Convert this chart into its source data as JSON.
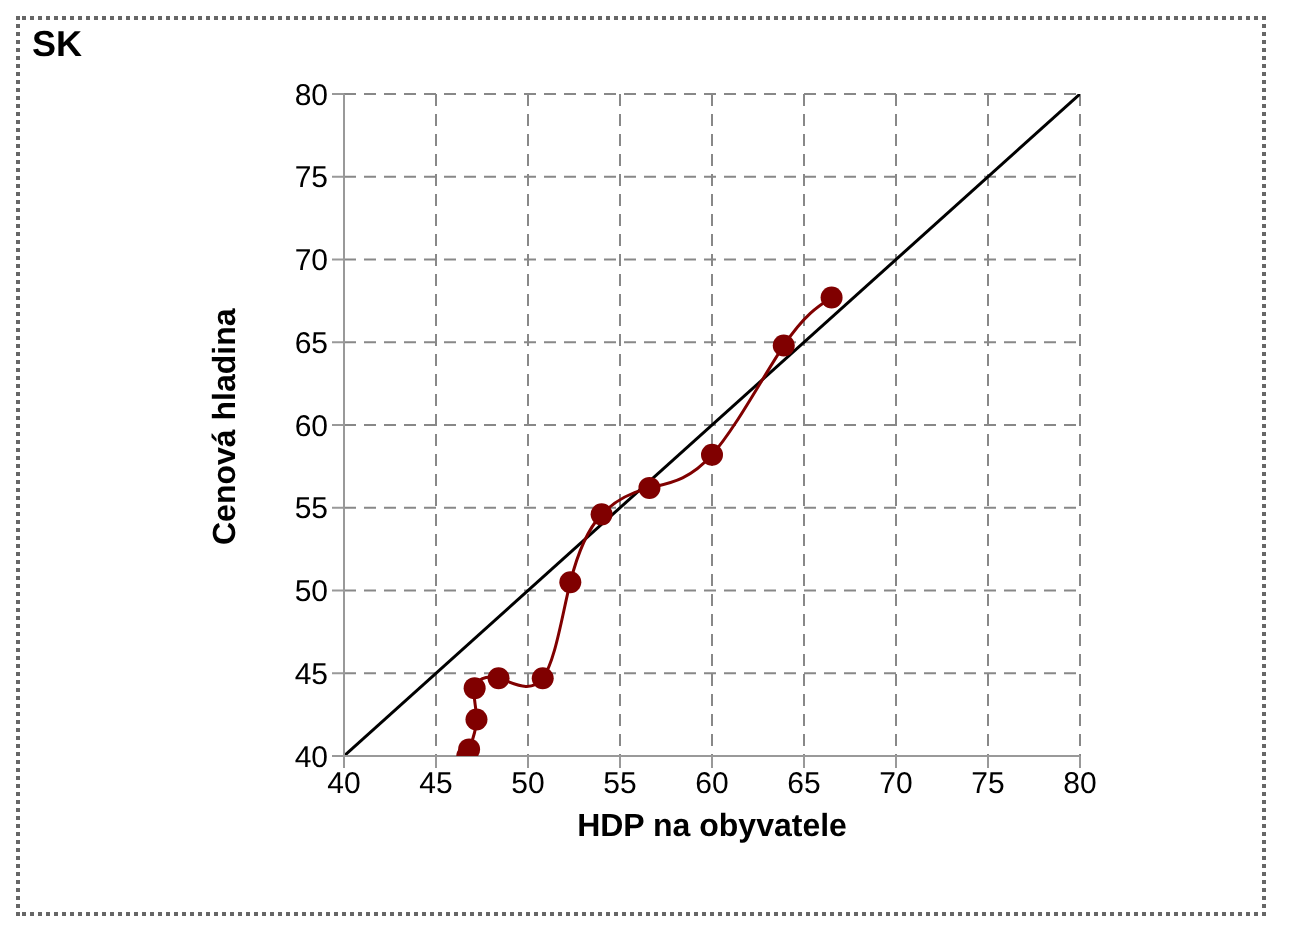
{
  "chart_data": {
    "type": "line",
    "title": "SK",
    "xlabel": "HDP na obyvatele",
    "ylabel": "Cenová hladina",
    "xlim": [
      40,
      80
    ],
    "xticks": [
      40,
      45,
      50,
      55,
      60,
      65,
      70,
      75,
      80
    ],
    "ylim": [
      40,
      80
    ],
    "yticks": [
      40,
      45,
      50,
      55,
      60,
      65,
      70,
      75,
      80
    ],
    "grid": true,
    "series": [
      {
        "color": "#000000",
        "marker": "none",
        "x": [
          40,
          80
        ],
        "values": [
          40,
          80
        ]
      },
      {
        "color": "#800000",
        "marker": "circle",
        "x": [
          46.7,
          46.8,
          47.2,
          47.1,
          48.4,
          50.8,
          52.3,
          54.0,
          56.6,
          60.0,
          63.9,
          66.5
        ],
        "values": [
          40.0,
          40.4,
          42.2,
          44.1,
          44.7,
          44.7,
          50.5,
          54.6,
          56.2,
          58.2,
          64.8,
          67.7
        ]
      }
    ]
  }
}
